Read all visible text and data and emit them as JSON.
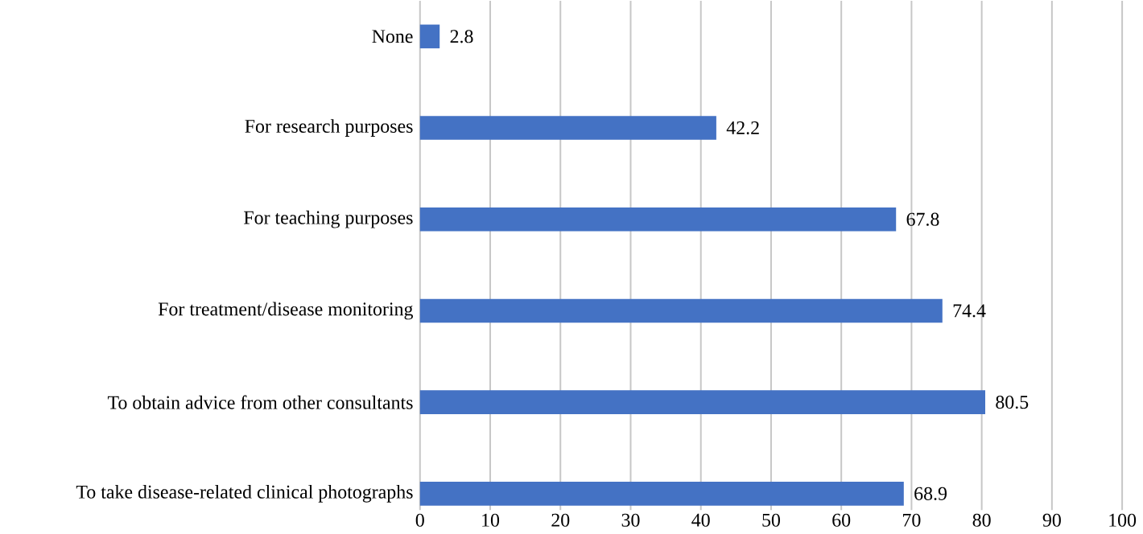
{
  "chart_data": {
    "type": "bar",
    "orientation": "horizontal",
    "categories": [
      "None",
      "For research purposes",
      "For teaching purposes",
      "For treatment/disease monitoring",
      "To obtain advice from other consultants",
      "To take disease-related clinical photographs"
    ],
    "values": [
      2.8,
      42.2,
      67.8,
      74.4,
      80.5,
      68.9
    ],
    "color": "#4472c4",
    "xlim": [
      0,
      100
    ],
    "xticks": [
      0,
      10,
      20,
      30,
      40,
      50,
      60,
      70,
      80,
      90,
      100
    ],
    "grid": "x",
    "data_labels": true
  }
}
